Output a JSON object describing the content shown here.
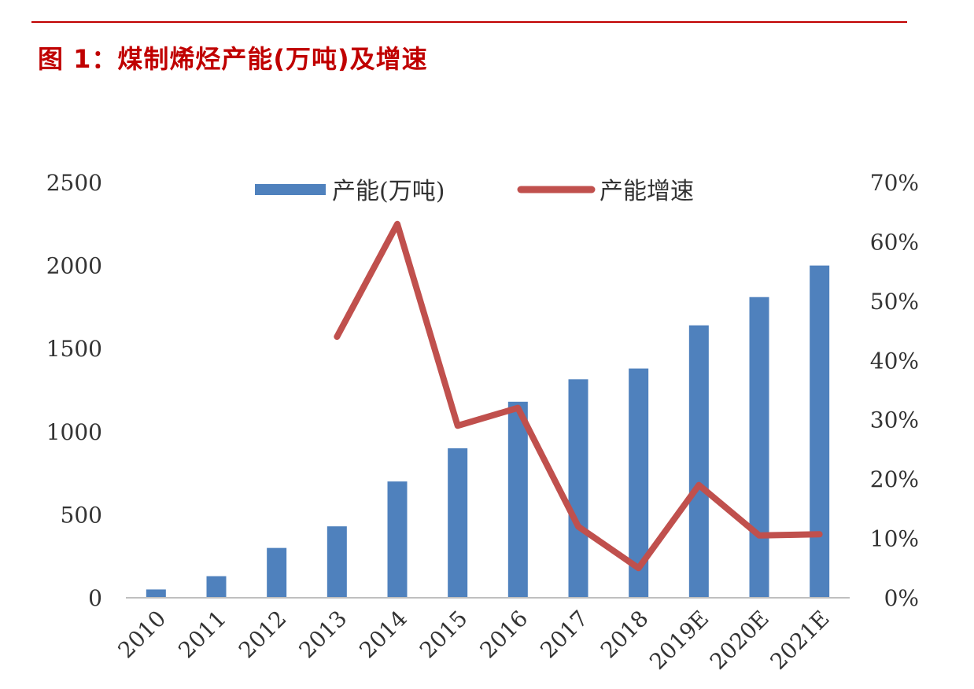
{
  "figure": {
    "title": "图 1：煤制烯烃产能(万吨)及增速"
  },
  "chart_data": {
    "type": "bar",
    "categories": [
      "2010",
      "2011",
      "2012",
      "2013",
      "2014",
      "2015",
      "2016",
      "2017",
      "2018",
      "2019E",
      "2020E",
      "2021E"
    ],
    "series": [
      {
        "name": "产能(万吨)",
        "type": "bar",
        "axis": "left",
        "color": "#4f81bd",
        "values": [
          50,
          130,
          300,
          430,
          700,
          900,
          1180,
          1315,
          1380,
          1640,
          1810,
          2000
        ]
      },
      {
        "name": "产能增速",
        "type": "line",
        "axis": "right",
        "color": "#c0504d",
        "values": [
          null,
          null,
          null,
          0.44,
          0.63,
          0.29,
          0.32,
          0.12,
          0.05,
          0.19,
          0.105,
          0.107
        ]
      }
    ],
    "y_left": {
      "ylim": [
        0,
        2500
      ],
      "ticks": [
        "0",
        "500",
        "1000",
        "1500",
        "2000",
        "2500"
      ]
    },
    "y_right": {
      "ylim": [
        0,
        0.7
      ],
      "ticks": [
        "0%",
        "10%",
        "20%",
        "30%",
        "40%",
        "50%",
        "60%",
        "70%"
      ]
    },
    "grid": false,
    "legend": "top-center"
  }
}
